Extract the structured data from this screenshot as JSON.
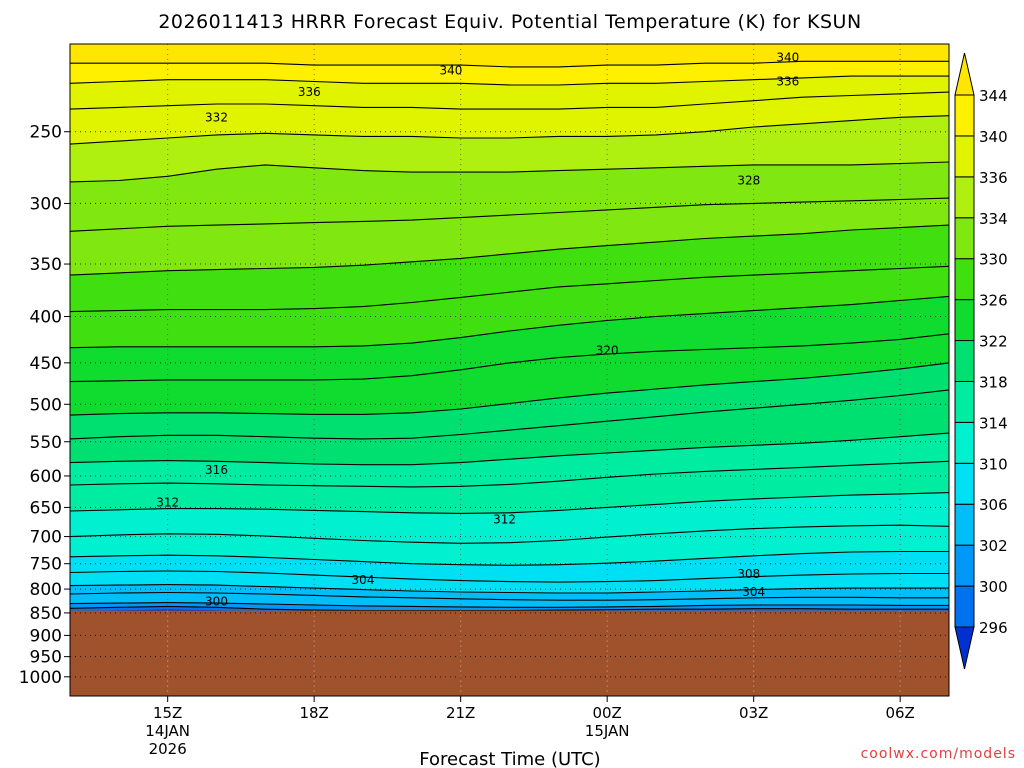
{
  "chart_data": {
    "type": "heatmap",
    "title": "2026011413 HRRR Forecast Equiv. Potential Temperature (K) for KSUN",
    "xlabel": "Forecast Time (UTC)",
    "ylabel": "",
    "credit": "coolwx.com/models",
    "x_ticks": [
      {
        "label": "15Z",
        "sub1": "14JAN",
        "sub2": "2026",
        "hour": 2
      },
      {
        "label": "18Z",
        "sub1": "",
        "sub2": "",
        "hour": 5
      },
      {
        "label": "21Z",
        "sub1": "",
        "sub2": "",
        "hour": 8
      },
      {
        "label": "00Z",
        "sub1": "15JAN",
        "sub2": "",
        "hour": 11
      },
      {
        "label": "03Z",
        "sub1": "",
        "sub2": "",
        "hour": 14
      },
      {
        "label": "06Z",
        "sub1": "",
        "sub2": "",
        "hour": 17
      }
    ],
    "x_range_hours": [
      0,
      18
    ],
    "y_ticks": [
      250,
      300,
      350,
      400,
      450,
      500,
      550,
      600,
      650,
      700,
      750,
      800,
      850,
      900,
      950,
      1000
    ],
    "y_range_hPa": [
      200,
      1050
    ],
    "y_scale": "log",
    "surface_pressure_hPa": 845,
    "colorbar": {
      "levels": [
        296,
        300,
        302,
        306,
        310,
        314,
        318,
        322,
        326,
        330,
        334,
        336,
        340,
        344
      ],
      "colors": [
        "#0050e8",
        "#0072f0",
        "#0098f8",
        "#00bff8",
        "#00e0f4",
        "#00f0d0",
        "#00eca0",
        "#00e070",
        "#10dc30",
        "#40e010",
        "#80e810",
        "#b0f010",
        "#e0f400",
        "#fff000",
        "#ffff40"
      ],
      "under_color": "#0030d0",
      "over_color": "#ffe600"
    },
    "series": [
      {
        "level": 300,
        "pressure_hPa": [
          840,
          838,
          836,
          838,
          842,
          844,
          845,
          845,
          845,
          845,
          844,
          843,
          842,
          842,
          841,
          841,
          842,
          842,
          842
        ]
      },
      {
        "level": 302,
        "pressure_hPa": [
          830,
          829,
          828,
          829,
          831,
          833,
          835,
          836,
          837,
          838,
          838,
          837,
          836,
          834,
          833,
          833,
          833,
          834,
          834
        ]
      },
      {
        "level": 304,
        "pressure_hPa": [
          810,
          808,
          807,
          808,
          810,
          813,
          816,
          818,
          820,
          822,
          823,
          823,
          822,
          820,
          818,
          817,
          817,
          818,
          818
        ]
      },
      {
        "level": 306,
        "pressure_hPa": [
          793,
          792,
          791,
          792,
          795,
          798,
          801,
          804,
          806,
          807,
          808,
          808,
          806,
          804,
          801,
          799,
          798,
          798,
          798
        ]
      },
      {
        "level": 308,
        "pressure_hPa": [
          767,
          765,
          764,
          765,
          768,
          772,
          776,
          780,
          783,
          785,
          786,
          785,
          783,
          779,
          775,
          772,
          770,
          769,
          769
        ]
      },
      {
        "level": 310,
        "pressure_hPa": [
          737,
          735,
          734,
          735,
          738,
          742,
          746,
          750,
          752,
          753,
          752,
          749,
          745,
          740,
          735,
          731,
          728,
          727,
          727
        ]
      },
      {
        "level": 312,
        "pressure_hPa": [
          700,
          697,
          695,
          696,
          699,
          703,
          707,
          710,
          712,
          711,
          707,
          701,
          695,
          690,
          686,
          683,
          681,
          680,
          682
        ]
      },
      {
        "level": 314,
        "pressure_hPa": [
          656,
          654,
          652,
          652,
          653,
          655,
          657,
          659,
          660,
          659,
          655,
          650,
          645,
          640,
          636,
          633,
          630,
          628,
          626
        ]
      },
      {
        "level": 316,
        "pressure_hPa": [
          614,
          612,
          611,
          612,
          614,
          615,
          616,
          617,
          616,
          613,
          608,
          602,
          597,
          593,
          590,
          587,
          584,
          581,
          578
        ]
      },
      {
        "level": 318,
        "pressure_hPa": [
          580,
          578,
          577,
          578,
          580,
          582,
          583,
          583,
          580,
          575,
          570,
          566,
          562,
          558,
          555,
          552,
          548,
          543,
          538
        ]
      },
      {
        "level": 320,
        "pressure_hPa": [
          546,
          543,
          541,
          541,
          543,
          545,
          546,
          545,
          540,
          534,
          528,
          522,
          516,
          510,
          505,
          500,
          495,
          489,
          482
        ]
      },
      {
        "level": 322,
        "pressure_hPa": [
          514,
          512,
          511,
          511,
          512,
          513,
          513,
          511,
          506,
          499,
          492,
          486,
          481,
          476,
          472,
          468,
          463,
          457,
          450
        ]
      },
      {
        "level": 324,
        "pressure_hPa": [
          472,
          471,
          470,
          470,
          470,
          470,
          469,
          465,
          458,
          450,
          444,
          440,
          437,
          435,
          433,
          431,
          428,
          424,
          418
        ]
      },
      {
        "level": 326,
        "pressure_hPa": [
          433,
          432,
          432,
          432,
          432,
          432,
          431,
          428,
          422,
          415,
          409,
          404,
          400,
          397,
          394,
          391,
          388,
          384,
          380
        ]
      },
      {
        "level": 328,
        "pressure_hPa": [
          395,
          394,
          393,
          393,
          393,
          392,
          390,
          386,
          381,
          376,
          371,
          368,
          365,
          362,
          360,
          358,
          356,
          354,
          352
        ]
      },
      {
        "level": 330,
        "pressure_hPa": [
          360,
          358,
          356,
          355,
          354,
          353,
          351,
          348,
          345,
          341,
          337,
          334,
          331,
          328,
          326,
          324,
          321,
          319,
          317
        ]
      },
      {
        "level": 332,
        "pressure_hPa": [
          322,
          320,
          318,
          317,
          316,
          315,
          314,
          313,
          311,
          309,
          307,
          305,
          303,
          301,
          300,
          299,
          298,
          297,
          296
        ]
      },
      {
        "level": 334,
        "pressure_hPa": [
          284,
          283,
          280,
          275,
          272,
          274,
          276,
          277,
          277,
          277,
          276,
          275,
          274,
          273,
          272,
          272,
          272,
          271,
          270
        ]
      },
      {
        "level": 336,
        "pressure_hPa": [
          258,
          256,
          254,
          252,
          251,
          252,
          253,
          253,
          254,
          254,
          253,
          253,
          252,
          250,
          247,
          245,
          243,
          241,
          240
        ]
      },
      {
        "level": 338,
        "pressure_hPa": [
          236,
          235,
          234,
          233,
          233,
          234,
          235,
          235,
          236,
          236,
          236,
          235,
          235,
          233,
          231,
          229,
          228,
          227,
          226
        ]
      },
      {
        "level": 340,
        "pressure_hPa": [
          221,
          220,
          219,
          219,
          219,
          220,
          221,
          221,
          221,
          222,
          222,
          221,
          221,
          220,
          219,
          218,
          217,
          217,
          217
        ]
      },
      {
        "level": 342,
        "pressure_hPa": [
          210,
          210,
          210,
          210,
          210,
          211,
          211,
          211,
          211,
          212,
          212,
          211,
          211,
          210,
          210,
          209,
          209,
          209,
          209
        ]
      }
    ],
    "contour_labels": [
      {
        "text": "340",
        "hour": 7.8,
        "pressure_hPa": 214
      },
      {
        "text": "340",
        "hour": 14.7,
        "pressure_hPa": 207
      },
      {
        "text": "336",
        "hour": 4.9,
        "pressure_hPa": 226
      },
      {
        "text": "336",
        "hour": 14.7,
        "pressure_hPa": 220
      },
      {
        "text": "332",
        "hour": 3.0,
        "pressure_hPa": 241
      },
      {
        "text": "328",
        "hour": 13.9,
        "pressure_hPa": 283
      },
      {
        "text": "320",
        "hour": 11.0,
        "pressure_hPa": 436
      },
      {
        "text": "316",
        "hour": 3.0,
        "pressure_hPa": 591
      },
      {
        "text": "312",
        "hour": 2.0,
        "pressure_hPa": 642
      },
      {
        "text": "312",
        "hour": 8.9,
        "pressure_hPa": 670
      },
      {
        "text": "308",
        "hour": 13.9,
        "pressure_hPa": 770
      },
      {
        "text": "304",
        "hour": 6.0,
        "pressure_hPa": 782
      },
      {
        "text": "304",
        "hour": 14.0,
        "pressure_hPa": 806
      },
      {
        "text": "300",
        "hour": 3.0,
        "pressure_hPa": 826
      }
    ]
  }
}
